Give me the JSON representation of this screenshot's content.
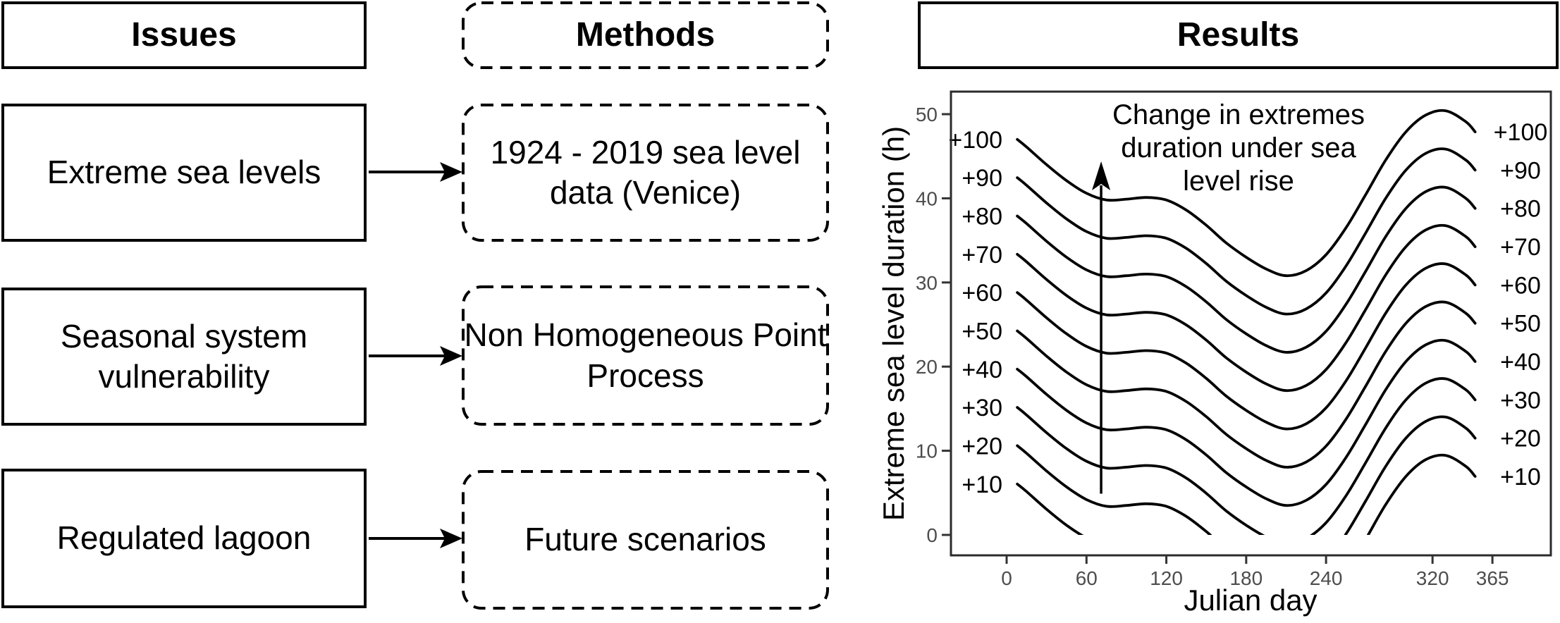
{
  "figure": {
    "columns": {
      "issues": {
        "header": "Issues",
        "items": [
          "Extreme sea levels",
          "Seasonal system\nvulnerability",
          "Regulated lagoon"
        ]
      },
      "methods": {
        "header": "Methods",
        "items": [
          "1924 - 2019 sea level\ndata (Venice)",
          "Non Homogeneous Point\nProcess",
          "Future scenarios"
        ]
      },
      "results": {
        "header": "Results"
      }
    },
    "connections": [
      [
        0,
        0
      ],
      [
        1,
        1
      ],
      [
        2,
        2
      ]
    ]
  },
  "chart_data": {
    "type": "line",
    "title": "",
    "xlabel": "Julian day",
    "ylabel": "Extreme sea level duration (h)",
    "x_ticks": [
      0,
      60,
      120,
      180,
      240,
      320,
      365
    ],
    "y_ticks": [
      0,
      10,
      20,
      30,
      40,
      50
    ],
    "xlim": [
      -41,
      406
    ],
    "ylim": [
      -2.4,
      52.7
    ],
    "grid": false,
    "legend_position": "curve labels on both sides of each line",
    "annotation": {
      "text": "Change in extremes\nduration under sea\nlevel rise",
      "arrow": {
        "x_day": 71,
        "y_from_h": 4.9,
        "y_to_h": 44.3
      }
    },
    "base_days": [
      8,
      15,
      30,
      45,
      60,
      75,
      90,
      105,
      120,
      135,
      150,
      165,
      180,
      195,
      210,
      225,
      240,
      255,
      270,
      285,
      300,
      315,
      330,
      345,
      352
    ],
    "base_values_h": [
      47.0,
      46.1,
      44.0,
      42.1,
      40.6,
      39.8,
      39.9,
      40.1,
      39.8,
      38.6,
      36.8,
      34.7,
      33.0,
      31.6,
      30.8,
      31.4,
      33.3,
      36.5,
      40.5,
      44.6,
      47.9,
      49.9,
      50.4,
      49.1,
      47.9
    ],
    "series_rule": "values = base_values_h + offset_h, clipped below 0 h",
    "clip_min_h": 0,
    "series": [
      {
        "label": "+100",
        "offset_h": 0
      },
      {
        "label": "+90",
        "offset_h": -4.55
      },
      {
        "label": "+80",
        "offset_h": -9.1
      },
      {
        "label": "+70",
        "offset_h": -13.65
      },
      {
        "label": "+60",
        "offset_h": -18.2
      },
      {
        "label": "+50",
        "offset_h": -22.75
      },
      {
        "label": "+40",
        "offset_h": -27.3
      },
      {
        "label": "+30",
        "offset_h": -31.85
      },
      {
        "label": "+20",
        "offset_h": -36.4
      },
      {
        "label": "+10",
        "offset_h": -40.95
      }
    ]
  },
  "colors": {
    "ink": "#000000",
    "tick_label": "#4d4d4d",
    "axis_line": "#2b2b2b",
    "background": "#ffffff"
  }
}
